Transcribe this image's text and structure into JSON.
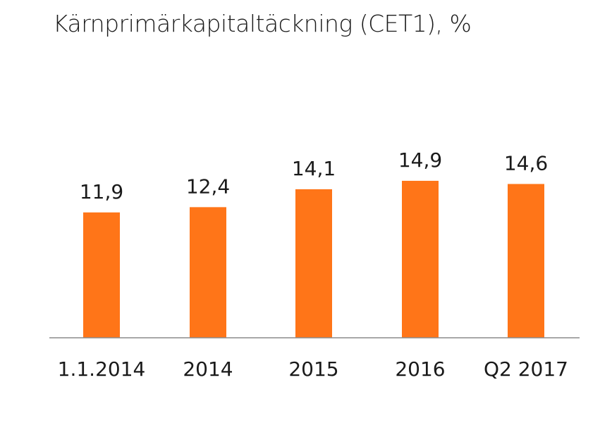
{
  "title": "Kärnprimärkapitaltäckning (CET1), %",
  "colors": {
    "bar": "#FF7518",
    "axis": "#8c8c8c",
    "text": "#1a1a1a"
  },
  "chart_data": {
    "type": "bar",
    "title": "Kärnprimärkapitaltäckning (CET1), %",
    "categories": [
      "1.1.2014",
      "2014",
      "2015",
      "2016",
      "Q2 2017"
    ],
    "values": [
      11.9,
      12.4,
      14.1,
      14.9,
      14.6
    ],
    "data_labels": [
      "11,9",
      "12,4",
      "14,1",
      "14,9",
      "14,6"
    ],
    "xlabel": "",
    "ylabel": "",
    "ylim": [
      0,
      16.3
    ],
    "grid": false,
    "legend": "none"
  }
}
